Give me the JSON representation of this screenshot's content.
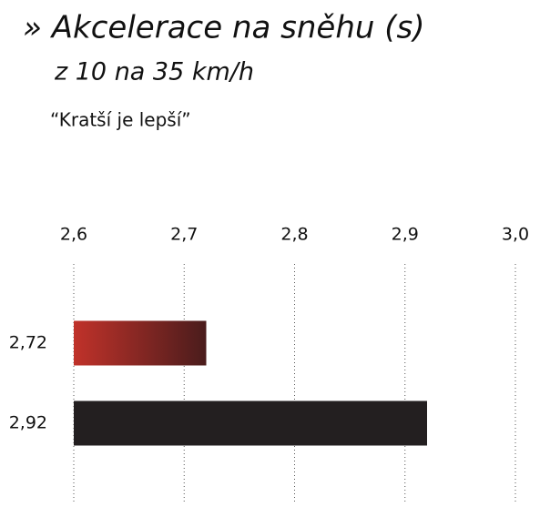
{
  "chart_data": {
    "type": "hbar",
    "title": "» Akcelerace na sněhu (s)",
    "subtitle": "z 10 na 35 km/h",
    "annotation": "“Kratší je lepší”",
    "values": [
      2.72,
      2.92
    ],
    "value_labels": [
      "2,72",
      "2,92"
    ],
    "colors": [
      "#c0322a",
      "#231f20"
    ],
    "xlim": [
      2.6,
      3.0
    ],
    "xticks": [
      {
        "value": 2.6,
        "label": "2,6"
      },
      {
        "value": 2.7,
        "label": "2,7"
      },
      {
        "value": 2.8,
        "label": "2,8"
      },
      {
        "value": 2.9,
        "label": "2,9"
      },
      {
        "value": 3.0,
        "label": "3,0"
      }
    ],
    "grid": true
  }
}
